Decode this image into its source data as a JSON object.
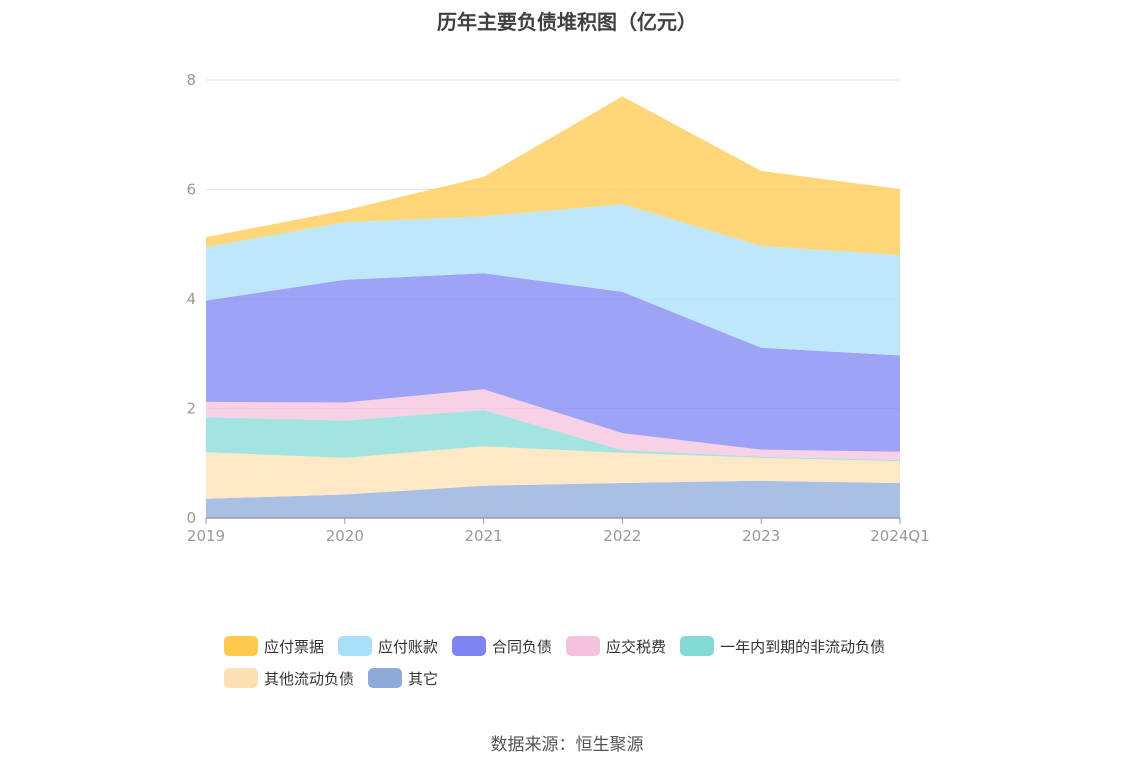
{
  "title": "历年主要负债堆积图（亿元）",
  "source": "数据来源：恒生聚源",
  "chart_data": {
    "type": "area",
    "stacked": true,
    "title": "历年主要负债堆积图（亿元）",
    "categories": [
      "2019",
      "2020",
      "2021",
      "2022",
      "2023",
      "2024Q1"
    ],
    "ylim": [
      0,
      8
    ],
    "yticks": [
      0,
      2,
      4,
      6,
      8
    ],
    "grid": true,
    "legend_position": "bottom",
    "series": [
      {
        "name": "其它",
        "color": "#8eaadb",
        "values": [
          0.35,
          0.43,
          0.59,
          0.64,
          0.68,
          0.64
        ]
      },
      {
        "name": "其他流动负债",
        "color": "#ffe0b2",
        "values": [
          0.85,
          0.67,
          0.72,
          0.55,
          0.42,
          0.4
        ]
      },
      {
        "name": "一年内到期的非流动负债",
        "color": "#84d9d6",
        "values": [
          0.64,
          0.68,
          0.66,
          0.05,
          0.02,
          0.02
        ]
      },
      {
        "name": "应交税费",
        "color": "#f4c2dc",
        "values": [
          0.28,
          0.33,
          0.38,
          0.31,
          0.13,
          0.15
        ]
      },
      {
        "name": "合同负债",
        "color": "#7f84f2",
        "values": [
          1.85,
          2.24,
          2.12,
          2.58,
          1.86,
          1.76
        ]
      },
      {
        "name": "应付账款",
        "color": "#a9dff8",
        "values": [
          0.98,
          1.05,
          1.04,
          1.6,
          1.86,
          1.83
        ]
      },
      {
        "name": "应付票据",
        "color": "#ffc94d",
        "values": [
          0.18,
          0.22,
          0.72,
          1.97,
          1.37,
          1.21
        ]
      }
    ],
    "legend_order": [
      "应付票据",
      "应付账款",
      "合同负债",
      "应交税费",
      "一年内到期的非流动负债",
      "其他流动负债",
      "其它"
    ]
  }
}
